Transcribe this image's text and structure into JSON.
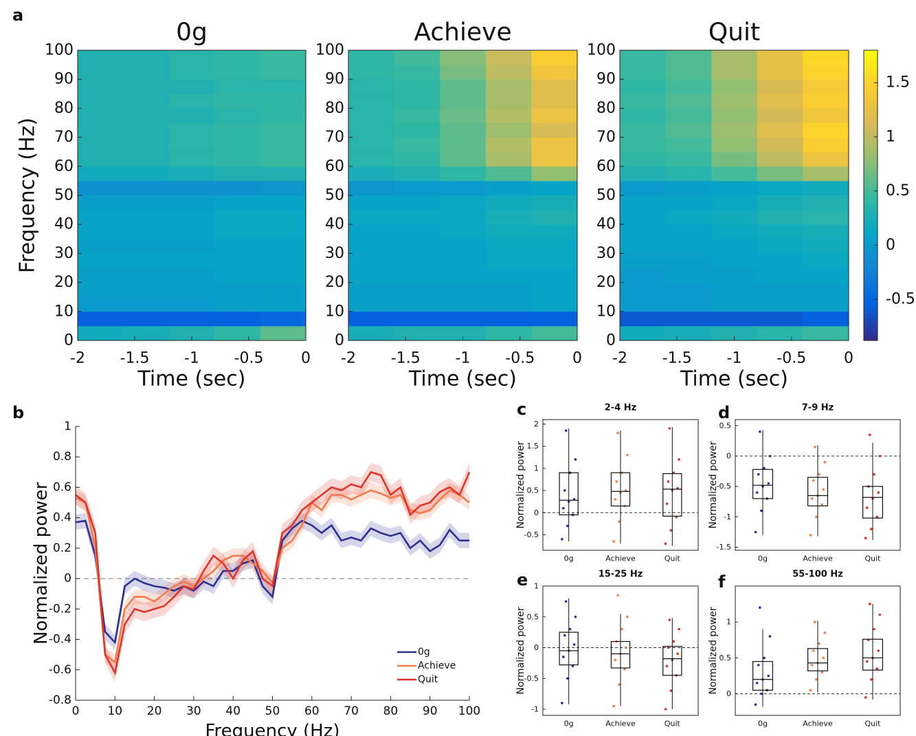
{
  "chart_data": [
    {
      "type": "heatmap",
      "panel_label": "a",
      "title": "0g",
      "xlabel": "Time (sec)",
      "ylabel": "Frequency (Hz)",
      "x": [
        -1.8,
        -1.4,
        -1,
        -0.6,
        -0.2
      ],
      "y": [
        2.5,
        7.5,
        12.5,
        17.5,
        22.5,
        27.5,
        32.5,
        37.5,
        42.5,
        47.5,
        52.5,
        57.5,
        62.5,
        67.5,
        72.5,
        77.5,
        82.5,
        87.5,
        92.5,
        97.5
      ],
      "values": [
        [
          0.2,
          0.25,
          0.3,
          0.4,
          0.6
        ],
        [
          -0.55,
          -0.55,
          -0.55,
          -0.55,
          -0.5
        ],
        [
          0.0,
          0.0,
          0.0,
          0.05,
          0.05
        ],
        [
          0.05,
          0.05,
          0.05,
          0.05,
          0.05
        ],
        [
          0.05,
          0.05,
          0.05,
          0.1,
          0.1
        ],
        [
          0.1,
          0.1,
          0.1,
          0.1,
          0.1
        ],
        [
          0.05,
          0.05,
          0.05,
          0.1,
          0.1
        ],
        [
          0.1,
          0.1,
          0.1,
          0.15,
          0.15
        ],
        [
          0.1,
          0.1,
          0.1,
          0.15,
          0.15
        ],
        [
          0.05,
          0.05,
          0.05,
          0.1,
          0.1
        ],
        [
          -0.1,
          -0.1,
          -0.1,
          -0.1,
          -0.05
        ],
        [
          0.2,
          0.2,
          0.25,
          0.3,
          0.3
        ],
        [
          0.3,
          0.3,
          0.35,
          0.4,
          0.45
        ],
        [
          0.3,
          0.3,
          0.35,
          0.4,
          0.45
        ],
        [
          0.3,
          0.3,
          0.35,
          0.4,
          0.45
        ],
        [
          0.3,
          0.3,
          0.3,
          0.35,
          0.4
        ],
        [
          0.3,
          0.3,
          0.35,
          0.4,
          0.4
        ],
        [
          0.3,
          0.3,
          0.3,
          0.35,
          0.35
        ],
        [
          0.3,
          0.3,
          0.35,
          0.4,
          0.45
        ],
        [
          0.3,
          0.3,
          0.35,
          0.4,
          0.45
        ]
      ],
      "xlim": [
        -2,
        0
      ],
      "xticks": [
        -2,
        -1.5,
        -1,
        -0.5,
        0
      ],
      "ylim": [
        0,
        100
      ],
      "yticks": [
        0,
        10,
        20,
        30,
        40,
        50,
        60,
        70,
        80,
        90,
        100
      ]
    },
    {
      "type": "heatmap",
      "title": "Achieve",
      "xlabel": "Time (sec)",
      "x": [
        -1.8,
        -1.4,
        -1,
        -0.6,
        -0.2
      ],
      "y": [
        2.5,
        7.5,
        12.5,
        17.5,
        22.5,
        27.5,
        32.5,
        37.5,
        42.5,
        47.5,
        52.5,
        57.5,
        62.5,
        67.5,
        72.5,
        77.5,
        82.5,
        87.5,
        92.5,
        97.5
      ],
      "values": [
        [
          0.25,
          0.3,
          0.3,
          0.4,
          0.5
        ],
        [
          -0.55,
          -0.55,
          -0.55,
          -0.55,
          -0.55
        ],
        [
          0.05,
          0.05,
          0.05,
          0.05,
          0.1
        ],
        [
          0.05,
          0.05,
          0.05,
          0.05,
          0.1
        ],
        [
          0.1,
          0.1,
          0.1,
          0.1,
          0.1
        ],
        [
          0.1,
          0.1,
          0.1,
          0.15,
          0.15
        ],
        [
          0.1,
          0.1,
          0.1,
          0.15,
          0.15
        ],
        [
          0.1,
          0.1,
          0.15,
          0.2,
          0.2
        ],
        [
          0.15,
          0.15,
          0.15,
          0.25,
          0.3
        ],
        [
          0.1,
          0.1,
          0.15,
          0.2,
          0.25
        ],
        [
          -0.05,
          0.0,
          0.0,
          0.05,
          0.1
        ],
        [
          0.25,
          0.3,
          0.4,
          0.55,
          0.8
        ],
        [
          0.35,
          0.4,
          0.6,
          0.9,
          1.3
        ],
        [
          0.35,
          0.45,
          0.6,
          0.95,
          1.3
        ],
        [
          0.35,
          0.4,
          0.6,
          0.85,
          1.15
        ],
        [
          0.35,
          0.45,
          0.65,
          0.95,
          1.3
        ],
        [
          0.35,
          0.4,
          0.6,
          0.9,
          1.2
        ],
        [
          0.35,
          0.4,
          0.6,
          0.9,
          1.2
        ],
        [
          0.4,
          0.45,
          0.7,
          1.0,
          1.35
        ],
        [
          0.4,
          0.5,
          0.75,
          1.05,
          1.45
        ]
      ],
      "xlim": [
        -2,
        0
      ],
      "xticks": [
        -2,
        -1.5,
        -1,
        -0.5,
        0
      ],
      "ylim": [
        0,
        100
      ],
      "yticks": [
        0,
        10,
        20,
        30,
        40,
        50,
        60,
        70,
        80,
        90,
        100
      ]
    },
    {
      "type": "heatmap",
      "title": "Quit",
      "xlabel": "Time (sec)",
      "x": [
        -1.8,
        -1.4,
        -1,
        -0.6,
        -0.2
      ],
      "y": [
        2.5,
        7.5,
        12.5,
        17.5,
        22.5,
        27.5,
        32.5,
        37.5,
        42.5,
        47.5,
        52.5,
        57.5,
        62.5,
        67.5,
        72.5,
        77.5,
        82.5,
        87.5,
        92.5,
        97.5
      ],
      "values": [
        [
          0.2,
          0.25,
          0.3,
          0.35,
          0.45
        ],
        [
          -0.6,
          -0.6,
          -0.6,
          -0.6,
          -0.55
        ],
        [
          0.0,
          0.0,
          0.05,
          0.05,
          0.05
        ],
        [
          0.0,
          0.0,
          0.05,
          0.05,
          0.05
        ],
        [
          0.0,
          0.05,
          0.05,
          0.1,
          0.1
        ],
        [
          0.05,
          0.05,
          0.1,
          0.1,
          0.15
        ],
        [
          0.1,
          0.1,
          0.1,
          0.15,
          0.2
        ],
        [
          0.1,
          0.1,
          0.15,
          0.2,
          0.25
        ],
        [
          0.1,
          0.15,
          0.2,
          0.3,
          0.35
        ],
        [
          0.1,
          0.1,
          0.15,
          0.25,
          0.3
        ],
        [
          0.0,
          0.05,
          0.1,
          0.15,
          0.2
        ],
        [
          0.3,
          0.35,
          0.5,
          0.7,
          0.9
        ],
        [
          0.4,
          0.45,
          0.7,
          1.0,
          1.3
        ],
        [
          0.45,
          0.5,
          0.8,
          1.1,
          1.45
        ],
        [
          0.45,
          0.55,
          0.85,
          1.2,
          1.5
        ],
        [
          0.4,
          0.5,
          0.8,
          1.1,
          1.35
        ],
        [
          0.45,
          0.55,
          0.85,
          1.2,
          1.45
        ],
        [
          0.4,
          0.5,
          0.8,
          1.15,
          1.4
        ],
        [
          0.45,
          0.55,
          0.9,
          1.25,
          1.5
        ],
        [
          0.45,
          0.55,
          0.9,
          1.25,
          1.55
        ]
      ],
      "xlim": [
        -2,
        0
      ],
      "xticks": [
        -2,
        -1.5,
        -1,
        -0.5,
        0
      ],
      "ylim": [
        0,
        100
      ],
      "yticks": [
        0,
        10,
        20,
        30,
        40,
        50,
        60,
        70,
        80,
        90,
        100
      ]
    },
    {
      "type": "colorbar",
      "colormap": "parula",
      "clim": [
        -0.88,
        1.8
      ],
      "ticks": [
        -0.5,
        0,
        0.5,
        1,
        1.5
      ]
    },
    {
      "type": "line",
      "panel_label": "b",
      "xlabel": "Frequency (Hz)",
      "ylabel": "Normalized power",
      "x": [
        0,
        2.5,
        5,
        7.5,
        10,
        12.5,
        15,
        17.5,
        20,
        22.5,
        25,
        27.5,
        30,
        32.5,
        35,
        37.5,
        40,
        42.5,
        45,
        47.5,
        50,
        52.5,
        55,
        57.5,
        60,
        62.5,
        65,
        67.5,
        70,
        72.5,
        75,
        77.5,
        80,
        82.5,
        85,
        87.5,
        90,
        92.5,
        95,
        97.5,
        100
      ],
      "series": [
        {
          "name": "0g",
          "color": "#2e3192",
          "error": 0.05,
          "values": [
            0.37,
            0.38,
            0.15,
            -0.35,
            -0.42,
            -0.05,
            0.0,
            -0.03,
            -0.05,
            -0.06,
            -0.08,
            -0.05,
            -0.08,
            -0.02,
            -0.05,
            0.05,
            0.05,
            0.1,
            0.12,
            -0.05,
            -0.12,
            0.25,
            0.33,
            0.38,
            0.35,
            0.3,
            0.35,
            0.25,
            0.27,
            0.25,
            0.33,
            0.3,
            0.28,
            0.3,
            0.2,
            0.25,
            0.18,
            0.22,
            0.32,
            0.25,
            0.25
          ]
        },
        {
          "name": "Achieve",
          "color": "#f47a4a",
          "error": 0.05,
          "values": [
            0.53,
            0.5,
            0.2,
            -0.5,
            -0.55,
            -0.2,
            -0.12,
            -0.12,
            -0.15,
            -0.1,
            -0.05,
            -0.02,
            -0.05,
            0.0,
            0.05,
            0.12,
            0.15,
            0.15,
            0.1,
            0.05,
            -0.03,
            0.2,
            0.25,
            0.35,
            0.5,
            0.45,
            0.55,
            0.55,
            0.52,
            0.55,
            0.58,
            0.56,
            0.53,
            0.55,
            0.45,
            0.43,
            0.45,
            0.52,
            0.58,
            0.55,
            0.5
          ]
        },
        {
          "name": "Quit",
          "color": "#e0362a",
          "error": 0.06,
          "values": [
            0.55,
            0.5,
            0.3,
            -0.5,
            -0.62,
            -0.3,
            -0.2,
            -0.22,
            -0.2,
            -0.18,
            -0.12,
            -0.05,
            -0.07,
            0.05,
            0.15,
            0.1,
            0.0,
            0.12,
            0.18,
            0.0,
            -0.05,
            0.3,
            0.35,
            0.45,
            0.5,
            0.55,
            0.6,
            0.58,
            0.62,
            0.6,
            0.7,
            0.68,
            0.55,
            0.6,
            0.42,
            0.48,
            0.5,
            0.57,
            0.6,
            0.55,
            0.7
          ]
        }
      ],
      "xlim": [
        0,
        100
      ],
      "xticks": [
        0,
        10,
        20,
        30,
        40,
        50,
        60,
        70,
        80,
        90,
        100
      ],
      "ylim": [
        -0.8,
        1
      ],
      "yticks": [
        -0.8,
        -0.6,
        -0.4,
        -0.2,
        0,
        0.2,
        0.4,
        0.6,
        0.8,
        1
      ],
      "reference_line": 0,
      "legend": "lower right"
    },
    {
      "type": "box",
      "panel_label": "c",
      "title": "2-4 Hz",
      "ylabel": "Normalized power",
      "categories": [
        "0g",
        "Achieve",
        "Quit"
      ],
      "colors": [
        "#2b2f8f",
        "#f08040",
        "#d8342a"
      ],
      "boxes": [
        {
          "whislo": -0.65,
          "q1": -0.05,
          "median": 0.28,
          "q3": 0.9,
          "whishi": 1.9
        },
        {
          "whislo": -0.7,
          "q1": 0.15,
          "median": 0.48,
          "q3": 0.9,
          "whishi": 1.85
        },
        {
          "whislo": -0.75,
          "q1": -0.08,
          "median": 0.53,
          "q3": 0.88,
          "whishi": 1.93
        }
      ],
      "points": [
        [
          -0.6,
          -0.3,
          -0.05,
          0.1,
          0.25,
          0.3,
          0.5,
          0.9,
          1.2,
          1.85
        ],
        [
          -0.65,
          -0.2,
          0.15,
          0.3,
          0.45,
          0.5,
          0.7,
          0.9,
          1.3,
          1.8
        ],
        [
          -0.7,
          -0.4,
          -0.1,
          0.2,
          0.5,
          0.55,
          0.7,
          0.9,
          1.2,
          1.9
        ]
      ],
      "ylim": [
        -0.85,
        2.1
      ],
      "yticks": [
        -0.5,
        0,
        0.5,
        1,
        1.5,
        2
      ],
      "reference_line": 0
    },
    {
      "type": "box",
      "panel_label": "d",
      "title": "7-9 Hz",
      "ylabel": "Normalized power",
      "categories": [
        "0g",
        "Achieve",
        "Quit"
      ],
      "colors": [
        "#2b2f8f",
        "#f08040",
        "#d8342a"
      ],
      "boxes": [
        {
          "whislo": -1.3,
          "q1": -0.7,
          "median": -0.48,
          "q3": -0.22,
          "whishi": 0.43
        },
        {
          "whislo": -1.32,
          "q1": -0.82,
          "median": -0.65,
          "q3": -0.35,
          "whishi": 0.18
        },
        {
          "whislo": -1.38,
          "q1": -1.02,
          "median": -0.68,
          "q3": -0.5,
          "whishi": 0.22
        }
      ],
      "points": [
        [
          -1.25,
          -0.9,
          -0.7,
          -0.6,
          -0.5,
          -0.45,
          -0.3,
          -0.2,
          0.0,
          0.4
        ],
        [
          -1.3,
          -1.0,
          -0.8,
          -0.7,
          -0.65,
          -0.55,
          -0.4,
          -0.3,
          -0.1,
          0.15
        ],
        [
          -1.35,
          -1.2,
          -1.0,
          -0.85,
          -0.7,
          -0.6,
          -0.5,
          -0.3,
          0.0,
          0.35
        ]
      ],
      "ylim": [
        -1.55,
        0.6
      ],
      "yticks": [
        -1.5,
        -1,
        -0.5,
        0,
        0.5
      ],
      "reference_line": 0
    },
    {
      "type": "box",
      "panel_label": "e",
      "title": "15-25 Hz",
      "ylabel": "Normalized power",
      "categories": [
        "0g",
        "Achieve",
        "Quit"
      ],
      "colors": [
        "#2b2f8f",
        "#f08040",
        "#d8342a"
      ],
      "boxes": [
        {
          "whislo": -0.92,
          "q1": -0.28,
          "median": -0.05,
          "q3": 0.25,
          "whishi": 0.8
        },
        {
          "whislo": -0.95,
          "q1": -0.33,
          "median": -0.1,
          "q3": 0.1,
          "whishi": 0.55
        },
        {
          "whislo": -1.0,
          "q1": -0.45,
          "median": -0.18,
          "q3": 0.02,
          "whishi": 0.48
        }
      ],
      "points": [
        [
          -0.9,
          -0.5,
          -0.3,
          -0.15,
          -0.05,
          0.05,
          0.2,
          0.3,
          0.5,
          0.75
        ],
        [
          -0.95,
          -0.6,
          -0.35,
          -0.2,
          -0.1,
          0.0,
          0.1,
          0.3,
          0.5,
          0.85
        ],
        [
          -1.0,
          -0.7,
          -0.45,
          -0.3,
          -0.2,
          -0.1,
          0.0,
          0.1,
          0.3,
          0.45
        ]
      ],
      "ylim": [
        -1.1,
        1
      ],
      "yticks": [
        -1,
        -0.5,
        0,
        0.5,
        1
      ],
      "reference_line": 0
    },
    {
      "type": "box",
      "panel_label": "f",
      "title": "55-100 Hz",
      "ylabel": "Normalized power",
      "categories": [
        "0g",
        "Achieve",
        "Quit"
      ],
      "colors": [
        "#2b2f8f",
        "#f08040",
        "#d8342a"
      ],
      "boxes": [
        {
          "whislo": -0.18,
          "q1": 0.05,
          "median": 0.2,
          "q3": 0.45,
          "whishi": 0.9
        },
        {
          "whislo": 0.02,
          "q1": 0.32,
          "median": 0.43,
          "q3": 0.63,
          "whishi": 1.02
        },
        {
          "whislo": -0.08,
          "q1": 0.33,
          "median": 0.5,
          "q3": 0.76,
          "whishi": 1.25
        }
      ],
      "points": [
        [
          -0.15,
          0.0,
          0.05,
          0.15,
          0.2,
          0.25,
          0.4,
          0.5,
          0.8,
          1.2
        ],
        [
          0.05,
          0.2,
          0.3,
          0.4,
          0.43,
          0.5,
          0.6,
          0.7,
          0.85,
          1.0
        ],
        [
          -0.05,
          0.2,
          0.35,
          0.45,
          0.5,
          0.6,
          0.75,
          0.9,
          1.1,
          1.25
        ]
      ],
      "ylim": [
        -0.3,
        1.5
      ],
      "yticks": [
        0,
        0.5,
        1
      ],
      "reference_line": 0
    }
  ]
}
